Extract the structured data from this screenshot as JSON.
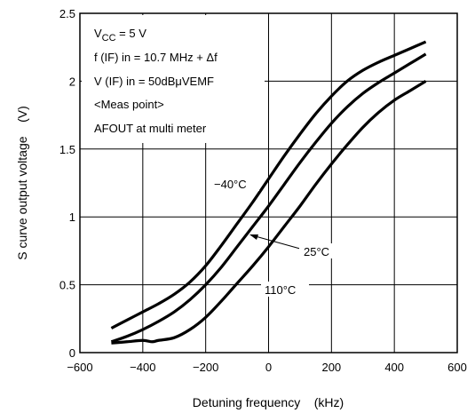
{
  "chart_data": {
    "type": "line",
    "title": "",
    "xlabel": "Detuning frequency    (kHz)",
    "ylabel": "S curve output voltage    (V)",
    "xlim": [
      -600,
      600
    ],
    "ylim": [
      0,
      2.5
    ],
    "x_ticks": [
      "−600",
      "−400",
      "−200",
      "0",
      "200",
      "400",
      "600"
    ],
    "y_ticks": [
      "0",
      "0.5",
      "1",
      "1.5",
      "2",
      "2.5"
    ],
    "grid": true,
    "conditions": {
      "vcc_prefix": "V",
      "vcc_sub": "CC",
      "vcc_rest": " = 5 V",
      "line2": "f (IF) in = 10.7 MHz + Δf",
      "line3": "V (IF) in = 50dBμVEMF",
      "line4": "<Meas point>",
      "line5": "AFOUT at multi meter"
    },
    "series": [
      {
        "name": "−40°C",
        "x": [
          -500,
          -450,
          -400,
          -350,
          -300,
          -250,
          -200,
          -150,
          -100,
          -50,
          0,
          50,
          100,
          150,
          200,
          250,
          300,
          350,
          400,
          450,
          500
        ],
        "y": [
          0.18,
          0.24,
          0.3,
          0.36,
          0.43,
          0.52,
          0.64,
          0.79,
          0.95,
          1.11,
          1.28,
          1.45,
          1.61,
          1.76,
          1.89,
          2.0,
          2.08,
          2.14,
          2.19,
          2.24,
          2.29
        ]
      },
      {
        "name": "25°C",
        "x": [
          -500,
          -450,
          -400,
          -350,
          -300,
          -250,
          -200,
          -150,
          -100,
          -50,
          0,
          50,
          100,
          150,
          200,
          250,
          300,
          350,
          400,
          450,
          500
        ],
        "y": [
          0.08,
          0.12,
          0.17,
          0.23,
          0.3,
          0.39,
          0.5,
          0.63,
          0.78,
          0.93,
          1.08,
          1.24,
          1.4,
          1.55,
          1.69,
          1.81,
          1.91,
          1.99,
          2.06,
          2.13,
          2.2
        ]
      },
      {
        "name": "110°C",
        "x": [
          -500,
          -450,
          -400,
          -370,
          -350,
          -300,
          -250,
          -200,
          -150,
          -100,
          -50,
          0,
          50,
          100,
          150,
          200,
          250,
          300,
          350,
          400,
          450,
          500
        ],
        "y": [
          0.07,
          0.08,
          0.09,
          0.08,
          0.09,
          0.11,
          0.17,
          0.26,
          0.38,
          0.51,
          0.64,
          0.78,
          0.93,
          1.08,
          1.24,
          1.39,
          1.53,
          1.66,
          1.77,
          1.86,
          1.93,
          2.0
        ]
      }
    ],
    "annotations": {
      "label_minus40": "−40°C",
      "label_25": "25°C",
      "label_110": "110°C"
    }
  }
}
